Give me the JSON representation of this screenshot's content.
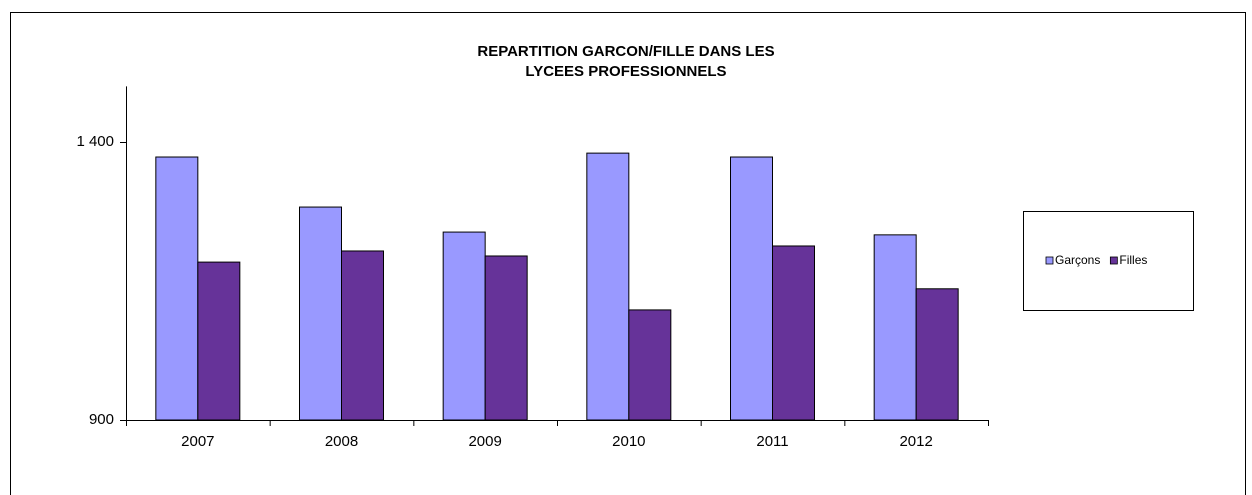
{
  "chart_data": {
    "type": "bar",
    "title": [
      "REPARTITION GARCON/FILLE DANS LES",
      "LYCEES PROFESSIONNELS"
    ],
    "categories": [
      "2007",
      "2008",
      "2009",
      "2010",
      "2011",
      "2012"
    ],
    "series": [
      {
        "name": "Garçons",
        "color": "#9999ff",
        "values": [
          1373,
          1283,
          1238,
          1380,
          1373,
          1233
        ]
      },
      {
        "name": "Filles",
        "color": "#663399",
        "values": [
          1184,
          1204,
          1195,
          1098,
          1213,
          1136
        ]
      }
    ],
    "ylim": [
      900,
      1500
    ],
    "yticks": [
      900,
      {
        "value": 1400,
        "label": "1 400"
      }
    ],
    "grid": false,
    "legend": "right"
  }
}
